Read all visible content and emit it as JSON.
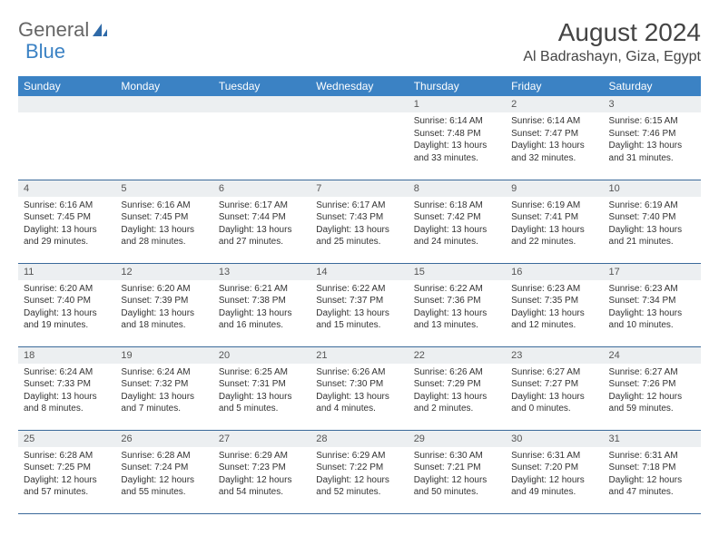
{
  "brand": {
    "part1": "General",
    "part2": "Blue"
  },
  "title": "August 2024",
  "location": "Al Badrashayn, Giza, Egypt",
  "colors": {
    "header_bg": "#3b82c4",
    "daynum_bg": "#eceff1",
    "rule": "#3b6a9a"
  },
  "day_names": [
    "Sunday",
    "Monday",
    "Tuesday",
    "Wednesday",
    "Thursday",
    "Friday",
    "Saturday"
  ],
  "weeks": [
    [
      null,
      null,
      null,
      null,
      {
        "n": "1",
        "sr": "Sunrise: 6:14 AM",
        "ss": "Sunset: 7:48 PM",
        "dl": "Daylight: 13 hours and 33 minutes."
      },
      {
        "n": "2",
        "sr": "Sunrise: 6:14 AM",
        "ss": "Sunset: 7:47 PM",
        "dl": "Daylight: 13 hours and 32 minutes."
      },
      {
        "n": "3",
        "sr": "Sunrise: 6:15 AM",
        "ss": "Sunset: 7:46 PM",
        "dl": "Daylight: 13 hours and 31 minutes."
      }
    ],
    [
      {
        "n": "4",
        "sr": "Sunrise: 6:16 AM",
        "ss": "Sunset: 7:45 PM",
        "dl": "Daylight: 13 hours and 29 minutes."
      },
      {
        "n": "5",
        "sr": "Sunrise: 6:16 AM",
        "ss": "Sunset: 7:45 PM",
        "dl": "Daylight: 13 hours and 28 minutes."
      },
      {
        "n": "6",
        "sr": "Sunrise: 6:17 AM",
        "ss": "Sunset: 7:44 PM",
        "dl": "Daylight: 13 hours and 27 minutes."
      },
      {
        "n": "7",
        "sr": "Sunrise: 6:17 AM",
        "ss": "Sunset: 7:43 PM",
        "dl": "Daylight: 13 hours and 25 minutes."
      },
      {
        "n": "8",
        "sr": "Sunrise: 6:18 AM",
        "ss": "Sunset: 7:42 PM",
        "dl": "Daylight: 13 hours and 24 minutes."
      },
      {
        "n": "9",
        "sr": "Sunrise: 6:19 AM",
        "ss": "Sunset: 7:41 PM",
        "dl": "Daylight: 13 hours and 22 minutes."
      },
      {
        "n": "10",
        "sr": "Sunrise: 6:19 AM",
        "ss": "Sunset: 7:40 PM",
        "dl": "Daylight: 13 hours and 21 minutes."
      }
    ],
    [
      {
        "n": "11",
        "sr": "Sunrise: 6:20 AM",
        "ss": "Sunset: 7:40 PM",
        "dl": "Daylight: 13 hours and 19 minutes."
      },
      {
        "n": "12",
        "sr": "Sunrise: 6:20 AM",
        "ss": "Sunset: 7:39 PM",
        "dl": "Daylight: 13 hours and 18 minutes."
      },
      {
        "n": "13",
        "sr": "Sunrise: 6:21 AM",
        "ss": "Sunset: 7:38 PM",
        "dl": "Daylight: 13 hours and 16 minutes."
      },
      {
        "n": "14",
        "sr": "Sunrise: 6:22 AM",
        "ss": "Sunset: 7:37 PM",
        "dl": "Daylight: 13 hours and 15 minutes."
      },
      {
        "n": "15",
        "sr": "Sunrise: 6:22 AM",
        "ss": "Sunset: 7:36 PM",
        "dl": "Daylight: 13 hours and 13 minutes."
      },
      {
        "n": "16",
        "sr": "Sunrise: 6:23 AM",
        "ss": "Sunset: 7:35 PM",
        "dl": "Daylight: 13 hours and 12 minutes."
      },
      {
        "n": "17",
        "sr": "Sunrise: 6:23 AM",
        "ss": "Sunset: 7:34 PM",
        "dl": "Daylight: 13 hours and 10 minutes."
      }
    ],
    [
      {
        "n": "18",
        "sr": "Sunrise: 6:24 AM",
        "ss": "Sunset: 7:33 PM",
        "dl": "Daylight: 13 hours and 8 minutes."
      },
      {
        "n": "19",
        "sr": "Sunrise: 6:24 AM",
        "ss": "Sunset: 7:32 PM",
        "dl": "Daylight: 13 hours and 7 minutes."
      },
      {
        "n": "20",
        "sr": "Sunrise: 6:25 AM",
        "ss": "Sunset: 7:31 PM",
        "dl": "Daylight: 13 hours and 5 minutes."
      },
      {
        "n": "21",
        "sr": "Sunrise: 6:26 AM",
        "ss": "Sunset: 7:30 PM",
        "dl": "Daylight: 13 hours and 4 minutes."
      },
      {
        "n": "22",
        "sr": "Sunrise: 6:26 AM",
        "ss": "Sunset: 7:29 PM",
        "dl": "Daylight: 13 hours and 2 minutes."
      },
      {
        "n": "23",
        "sr": "Sunrise: 6:27 AM",
        "ss": "Sunset: 7:27 PM",
        "dl": "Daylight: 13 hours and 0 minutes."
      },
      {
        "n": "24",
        "sr": "Sunrise: 6:27 AM",
        "ss": "Sunset: 7:26 PM",
        "dl": "Daylight: 12 hours and 59 minutes."
      }
    ],
    [
      {
        "n": "25",
        "sr": "Sunrise: 6:28 AM",
        "ss": "Sunset: 7:25 PM",
        "dl": "Daylight: 12 hours and 57 minutes."
      },
      {
        "n": "26",
        "sr": "Sunrise: 6:28 AM",
        "ss": "Sunset: 7:24 PM",
        "dl": "Daylight: 12 hours and 55 minutes."
      },
      {
        "n": "27",
        "sr": "Sunrise: 6:29 AM",
        "ss": "Sunset: 7:23 PM",
        "dl": "Daylight: 12 hours and 54 minutes."
      },
      {
        "n": "28",
        "sr": "Sunrise: 6:29 AM",
        "ss": "Sunset: 7:22 PM",
        "dl": "Daylight: 12 hours and 52 minutes."
      },
      {
        "n": "29",
        "sr": "Sunrise: 6:30 AM",
        "ss": "Sunset: 7:21 PM",
        "dl": "Daylight: 12 hours and 50 minutes."
      },
      {
        "n": "30",
        "sr": "Sunrise: 6:31 AM",
        "ss": "Sunset: 7:20 PM",
        "dl": "Daylight: 12 hours and 49 minutes."
      },
      {
        "n": "31",
        "sr": "Sunrise: 6:31 AM",
        "ss": "Sunset: 7:18 PM",
        "dl": "Daylight: 12 hours and 47 minutes."
      }
    ]
  ]
}
